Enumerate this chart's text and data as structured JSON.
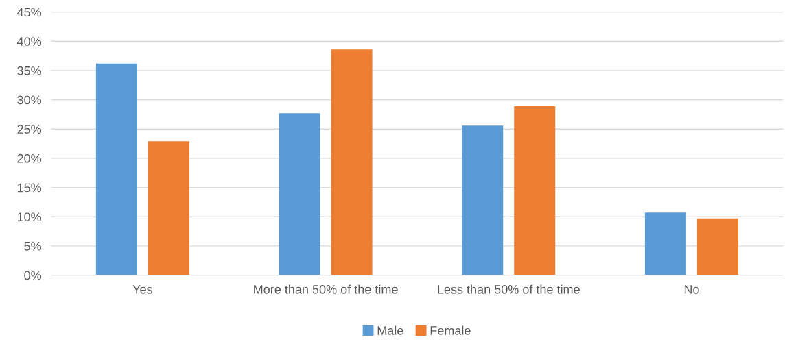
{
  "chart_data": {
    "type": "bar",
    "categories": [
      "Yes",
      "More than 50% of the time",
      "Less than 50% of the time",
      "No"
    ],
    "series": [
      {
        "name": "Male",
        "color": "#5b9bd5",
        "values": [
          36.2,
          27.7,
          25.6,
          10.7
        ]
      },
      {
        "name": "Female",
        "color": "#ed7d31",
        "values": [
          22.9,
          38.6,
          28.9,
          9.7
        ]
      }
    ],
    "ylim": [
      0,
      45
    ],
    "yticks": [
      {
        "value": 0,
        "label": "0%"
      },
      {
        "value": 5,
        "label": "5%"
      },
      {
        "value": 10,
        "label": "10%"
      },
      {
        "value": 15,
        "label": "15%"
      },
      {
        "value": 20,
        "label": "20%"
      },
      {
        "value": 25,
        "label": "25%"
      },
      {
        "value": 30,
        "label": "30%"
      },
      {
        "value": 35,
        "label": "35%"
      },
      {
        "value": 40,
        "label": "40%"
      },
      {
        "value": 45,
        "label": "45%"
      }
    ],
    "grid": "y",
    "legend": "bottom"
  }
}
